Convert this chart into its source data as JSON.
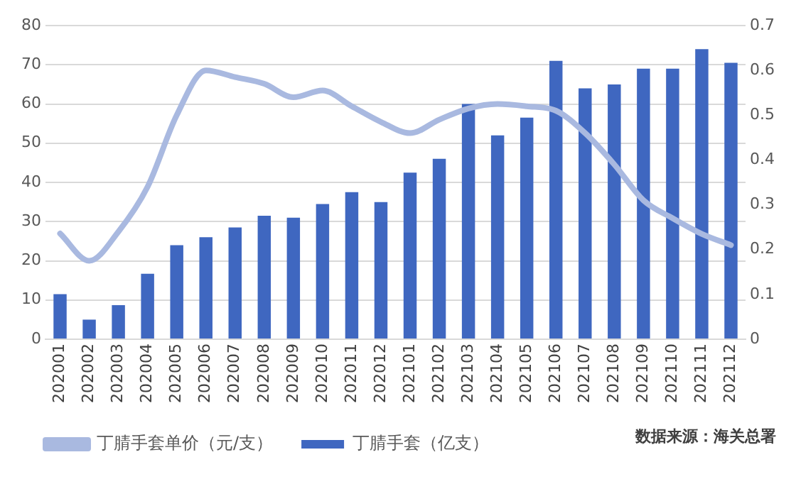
{
  "chart_data": {
    "type": "bar",
    "categories": [
      "202001",
      "202002",
      "202003",
      "202004",
      "202005",
      "202006",
      "202007",
      "202008",
      "202009",
      "202010",
      "202011",
      "202012",
      "202101",
      "202102",
      "202103",
      "202104",
      "202105",
      "202106",
      "202107",
      "202108",
      "202109",
      "202110",
      "202111",
      "202112"
    ],
    "series": [
      {
        "name": "丁腈手套（亿支）",
        "color": "#3f67c0",
        "values": [
          11.5,
          5,
          8.7,
          16.7,
          24,
          26,
          28.5,
          31.5,
          31,
          34.5,
          37.5,
          35,
          42.5,
          46,
          60,
          52,
          56.5,
          71,
          64,
          65,
          69,
          69,
          74,
          70.5
        ]
      },
      {
        "name": "丁腈手套单价（元/支）",
        "type": "line",
        "axis": "y2",
        "color": "#a9b9e0",
        "values": [
          0.236,
          0.175,
          0.24,
          0.34,
          0.5,
          0.6,
          0.585,
          0.57,
          0.54,
          0.555,
          0.52,
          0.485,
          0.46,
          0.49,
          0.515,
          0.525,
          0.52,
          0.51,
          0.46,
          0.39,
          0.31,
          0.27,
          0.235,
          0.21
        ]
      }
    ],
    "ylim": [
      0,
      80
    ],
    "yticks": [
      0,
      10,
      20,
      30,
      40,
      50,
      60,
      70,
      80
    ],
    "y2lim": [
      0,
      0.7
    ],
    "y2ticks": [
      0,
      0.1,
      0.2,
      0.3,
      0.4,
      0.5,
      0.6,
      0.7
    ],
    "grid": "y",
    "legend": "bottom",
    "marker": "none",
    "line_style": "solid",
    "annotations": [
      "数据来源：海关总署"
    ]
  }
}
